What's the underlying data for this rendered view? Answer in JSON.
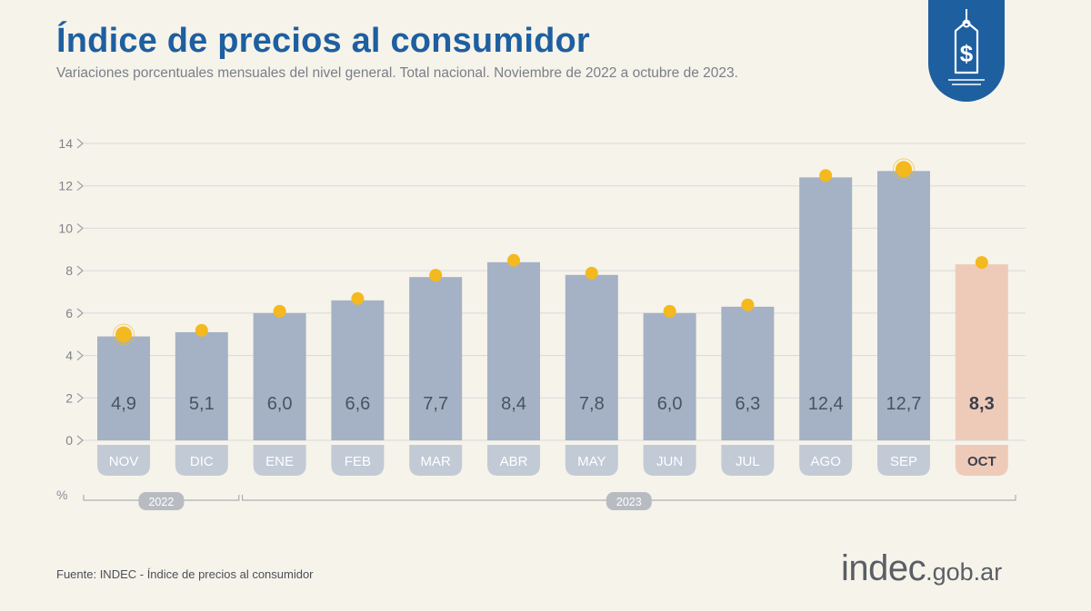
{
  "header": {
    "title": "Índice de precios al consumidor",
    "subtitle": "Variaciones porcentuales mensuales del nivel general. Total nacional. Noviembre de 2022 a octubre de 2023."
  },
  "badge": {
    "icon": "price-tag-icon",
    "color": "#1e5fa0"
  },
  "chart_data": {
    "type": "bar",
    "categories": [
      "NOV",
      "DIC",
      "ENE",
      "FEB",
      "MAR",
      "ABR",
      "MAY",
      "JUN",
      "JUL",
      "AGO",
      "SEP",
      "OCT"
    ],
    "values": [
      4.9,
      5.1,
      6.0,
      6.6,
      7.7,
      8.4,
      7.8,
      6.0,
      6.3,
      12.4,
      12.7,
      8.3
    ],
    "value_labels": [
      "4,9",
      "5,1",
      "6,0",
      "6,6",
      "7,7",
      "8,4",
      "7,8",
      "6,0",
      "6,3",
      "12,4",
      "12,7",
      "8,3"
    ],
    "ylim": [
      0,
      14
    ],
    "yticks": [
      0,
      2,
      4,
      6,
      8,
      10,
      12,
      14
    ],
    "ylabel": "%",
    "year_groups": [
      {
        "label": "2022",
        "from": 0,
        "to": 1
      },
      {
        "label": "2023",
        "from": 2,
        "to": 11
      }
    ],
    "highlight_index": 11,
    "grid": true,
    "colors": {
      "bar": "#a5b2c5",
      "bar_highlight": "#eecbb8",
      "dot": "#f4b91e",
      "grid": "#d8d9db",
      "label": "#4a5262",
      "highlight_label": "#3a4150"
    }
  },
  "footer": {
    "source": "Fuente: INDEC - Índice de precios al consumidor",
    "brand_main": "indec",
    "brand_suffix": ".gob.ar"
  }
}
